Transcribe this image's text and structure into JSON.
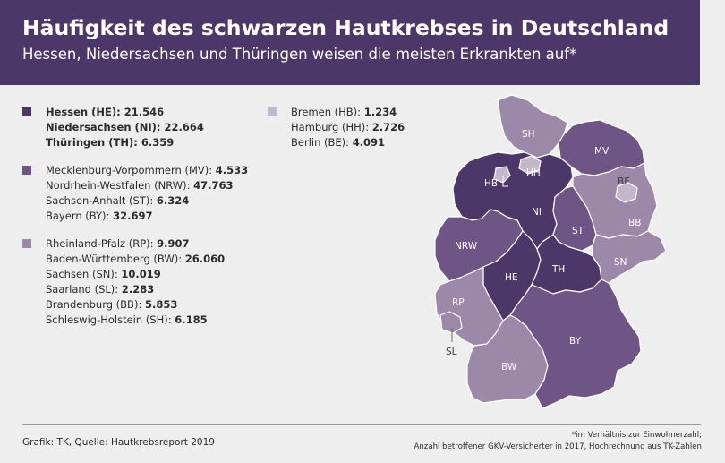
{
  "title": "Häufigkeit des schwarzen Hautkrebses in Deutschland",
  "subtitle": "Hessen, Niedersachsen und Thüringen weisen die meisten Erkrankten auf*",
  "colors": {
    "header_bg": "#4b3869",
    "level_high": "#4b3869",
    "level_mid": "#6e5586",
    "level_low": "#9c88a9",
    "level_lowest": "#c3b7cb"
  },
  "legend": {
    "groups": [
      {
        "level": "high",
        "rows": [
          {
            "name": "Hessen (HE): ",
            "value": "21.546",
            "bold_name": true
          },
          {
            "name": "Niedersachsen (NI): ",
            "value": "22.664",
            "bold_name": true
          },
          {
            "name": "Thüringen (TH): ",
            "value": "6.359",
            "bold_name": true
          }
        ]
      },
      {
        "level": "mid",
        "rows": [
          {
            "name": "Mecklenburg-Vorpommern (MV): ",
            "value": "4.533"
          },
          {
            "name": "Nordrhein-Westfalen (NRW): ",
            "value": "47.763"
          },
          {
            "name": "Sachsen-Anhalt (ST): ",
            "value": "6.324"
          },
          {
            "name": "Bayern (BY): ",
            "value": "32.697"
          }
        ]
      },
      {
        "level": "low",
        "rows": [
          {
            "name": "Rheinland-Pfalz (RP): ",
            "value": "9.907"
          },
          {
            "name": "Baden-Württemberg (BW): ",
            "value": "26.060"
          },
          {
            "name": "Sachsen (SN): ",
            "value": "10.019"
          },
          {
            "name": "Saarland (SL): ",
            "value": "2.283"
          },
          {
            "name": "Brandenburg (BB): ",
            "value": "5.853"
          },
          {
            "name": "Schleswig-Holstein (SH): ",
            "value": "6.185"
          }
        ]
      },
      {
        "level": "lowest",
        "rows": [
          {
            "name": "Bremen (HB): ",
            "value": "1.234"
          },
          {
            "name": "Hamburg (HH): ",
            "value": "2.726"
          },
          {
            "name": "Berlin (BE): ",
            "value": "4.091"
          }
        ]
      }
    ]
  },
  "map": {
    "states": {
      "SH": {
        "label": "SH",
        "level": "low"
      },
      "MV": {
        "label": "MV",
        "level": "mid"
      },
      "HH": {
        "label": "HH",
        "level": "lowest"
      },
      "HB": {
        "label": "HB",
        "level": "lowest"
      },
      "NI": {
        "label": "NI",
        "level": "high"
      },
      "BE": {
        "label": "BE",
        "level": "lowest"
      },
      "BB": {
        "label": "BB",
        "level": "low"
      },
      "ST": {
        "label": "ST",
        "level": "mid"
      },
      "NRW": {
        "label": "NRW",
        "level": "mid"
      },
      "HE": {
        "label": "HE",
        "level": "high"
      },
      "TH": {
        "label": "TH",
        "level": "high"
      },
      "SN": {
        "label": "SN",
        "level": "low"
      },
      "RP": {
        "label": "RP",
        "level": "low"
      },
      "SL": {
        "label": "SL",
        "level": "low"
      },
      "BW": {
        "label": "BW",
        "level": "low"
      },
      "BY": {
        "label": "BY",
        "level": "mid"
      }
    }
  },
  "footer": {
    "source": "Grafik: TK, Quelle: Hautkrebsreport 2019",
    "note_line1": "*im Verhältnis zur Einwohnerzahl;",
    "note_line2": "Anzahl betroffener GKV-Versicherter in 2017, Hochrechnung aus TK-Zahlen"
  }
}
